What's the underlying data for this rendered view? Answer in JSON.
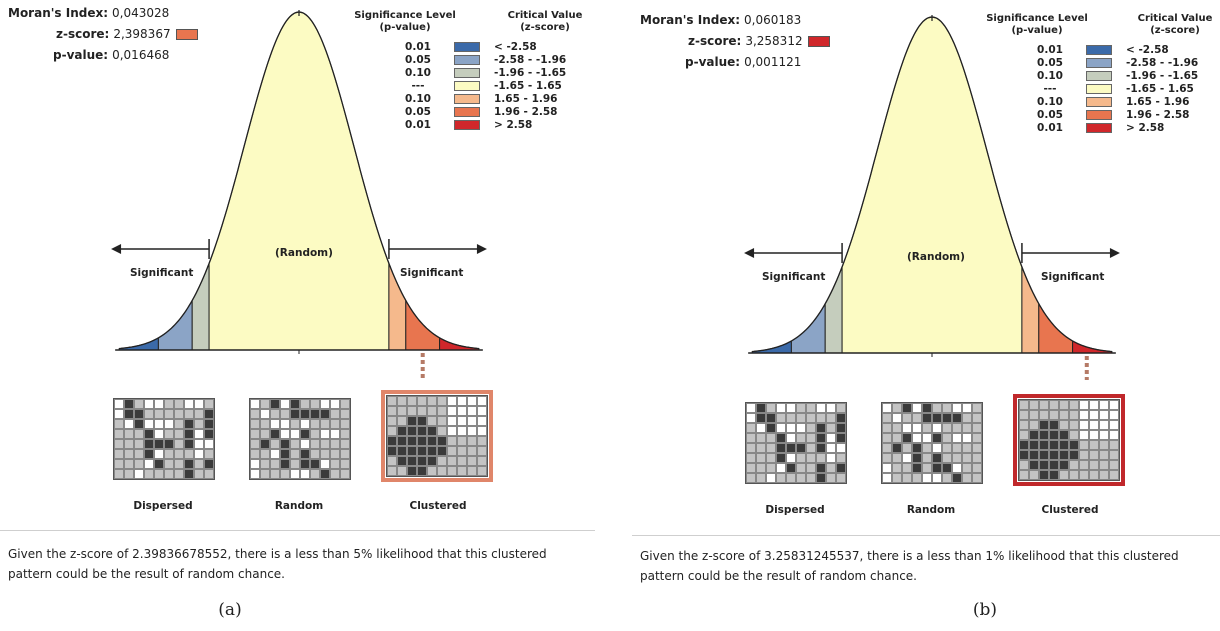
{
  "panels": [
    {
      "id": "a",
      "morans_label": "Moran's Index:",
      "morans_value": "0,043028",
      "z_label": "z-score:",
      "z_value": "2,398367",
      "z_color": "#e8754f",
      "p_label": "p-value:",
      "p_value": "0,016468",
      "highlight_bin": 5,
      "highlight_map": "clustered",
      "description_line1": "Given the z-score of 2.39836678552, there is a less than 5% likelihood that this clustered",
      "description_line2": "pattern could be the result of random chance.",
      "caption": "(a)"
    },
    {
      "id": "b",
      "morans_label": "Moran's Index:",
      "morans_value": "0,060183",
      "z_label": "z-score:",
      "z_value": "3,258312",
      "z_color": "#d0272b",
      "p_label": "p-value:",
      "p_value": "0,001121",
      "highlight_bin": 6,
      "highlight_map": "clustered",
      "description_line1": "Given the z-score of 3.25831245537, there is a less than 1% likelihood that this clustered",
      "description_line2": "pattern could be the result of random chance.",
      "caption": "(b)"
    }
  ],
  "legend": {
    "head_sig": [
      "Significance Level",
      "(p-value)"
    ],
    "head_crit": [
      "Critical Value",
      "(z-score)"
    ],
    "rows": [
      {
        "level": "0.01",
        "critical": "< -2.58",
        "color": "#3b6aa9"
      },
      {
        "level": "0.05",
        "critical": "-2.58 - -1.96",
        "color": "#8ba4c6"
      },
      {
        "level": "0.10",
        "critical": "-1.96 - -1.65",
        "color": "#c5cdbd"
      },
      {
        "level": "---",
        "critical": "-1.65 - 1.65",
        "color": "#fcfbc3"
      },
      {
        "level": "0.10",
        "critical": "1.65 - 1.96",
        "color": "#f5b98c"
      },
      {
        "level": "0.05",
        "critical": "1.96 - 2.58",
        "color": "#e8754f"
      },
      {
        "level": "0.01",
        "critical": "> 2.58",
        "color": "#d0272b"
      }
    ]
  },
  "curve_labels": {
    "random": "(Random)",
    "significant_left": "Significant",
    "significant_right": "Significant"
  },
  "maps": {
    "dispersed": "Dispersed",
    "random": "Random",
    "clustered": "Clustered"
  },
  "chart_data": {
    "type": "area",
    "distribution": "standard normal",
    "bins": [
      {
        "level": "0.01",
        "z_range": [
          -3.3,
          -2.58
        ],
        "color": "#3b6aa9"
      },
      {
        "level": "0.05",
        "z_range": [
          -2.58,
          -1.96
        ],
        "color": "#8ba4c6"
      },
      {
        "level": "0.10",
        "z_range": [
          -1.96,
          -1.65
        ],
        "color": "#c5cdbd"
      },
      {
        "level": "---",
        "z_range": [
          -1.65,
          1.65
        ],
        "color": "#fcfbc3"
      },
      {
        "level": "0.10",
        "z_range": [
          1.65,
          1.96
        ],
        "color": "#f5b98c"
      },
      {
        "level": "0.05",
        "z_range": [
          1.96,
          2.58
        ],
        "color": "#e8754f"
      },
      {
        "level": "0.01",
        "z_range": [
          2.58,
          3.3
        ],
        "color": "#d0272b"
      }
    ],
    "z_scores": [
      2.398367,
      3.258312
    ]
  }
}
